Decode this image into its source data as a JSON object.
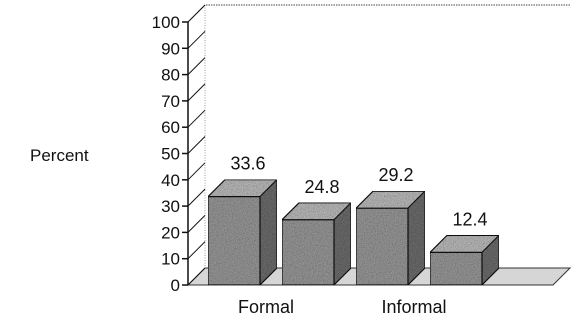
{
  "chart_data": {
    "type": "bar",
    "title": "",
    "xlabel": "",
    "ylabel": "Percent",
    "ylim": [
      0,
      100
    ],
    "yticks": [
      0,
      10,
      20,
      30,
      40,
      50,
      60,
      70,
      80,
      90,
      100
    ],
    "three_d": true,
    "grid": false,
    "legend": "none",
    "bar_color": "#9a9a9a",
    "bars": [
      {
        "value": 33.6,
        "label": "33.6"
      },
      {
        "value": 24.8,
        "label": "24.8"
      },
      {
        "value": 29.2,
        "label": "29.2"
      },
      {
        "value": 12.4,
        "label": "12.4"
      }
    ],
    "group_labels": [
      "Formal",
      "Informal"
    ]
  }
}
